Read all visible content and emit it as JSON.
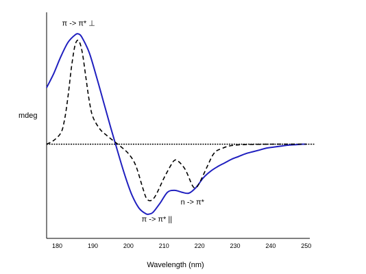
{
  "chart_data": {
    "type": "line",
    "xlabel": "Wavelength (nm)",
    "ylabel": "mdeg",
    "x_ticks": [
      180,
      190,
      200,
      210,
      220,
      230,
      240,
      250
    ],
    "xlim": [
      177,
      251
    ],
    "ylim": [
      -10,
      14
    ],
    "grid": false,
    "legend": "none",
    "zero_line": true,
    "series": [
      {
        "style": "solid",
        "color": "#1f1fbf",
        "x": [
          177,
          179,
          181,
          183,
          185,
          186,
          187,
          189,
          191,
          193,
          195,
          197,
          199,
          201,
          203,
          205,
          206,
          207,
          209,
          211,
          213,
          215,
          217,
          219,
          221,
          223,
          225,
          227,
          229,
          231,
          233,
          235,
          237,
          239,
          241,
          243,
          245,
          247,
          249,
          250
        ],
        "y": [
          6.0,
          7.5,
          9.3,
          10.8,
          11.6,
          11.7,
          11.3,
          9.7,
          7.2,
          4.5,
          1.8,
          -0.8,
          -3.3,
          -5.4,
          -6.8,
          -7.4,
          -7.4,
          -7.2,
          -6.2,
          -5.1,
          -4.9,
          -5.1,
          -5.2,
          -4.6,
          -3.6,
          -2.9,
          -2.4,
          -2.0,
          -1.6,
          -1.3,
          -1.0,
          -0.8,
          -0.6,
          -0.4,
          -0.3,
          -0.2,
          -0.1,
          -0.05,
          0.0,
          0.0
        ]
      },
      {
        "style": "dashed",
        "color": "#000000",
        "x": [
          177,
          179,
          181,
          182,
          183,
          184,
          185,
          186,
          187,
          188,
          189,
          190,
          192,
          194,
          196,
          198,
          200,
          202,
          204,
          205,
          206,
          207,
          208,
          210,
          212,
          213,
          214,
          216,
          218,
          219,
          220,
          222,
          224,
          226,
          230,
          240,
          250
        ],
        "y": [
          0.0,
          0.4,
          1.2,
          2.5,
          5.0,
          8.2,
          10.5,
          11.0,
          9.8,
          7.2,
          4.6,
          2.9,
          1.6,
          0.9,
          0.3,
          -0.3,
          -1.0,
          -2.2,
          -4.6,
          -5.7,
          -6.0,
          -5.8,
          -5.2,
          -3.6,
          -2.2,
          -1.7,
          -1.8,
          -2.7,
          -4.4,
          -4.6,
          -4.1,
          -2.5,
          -1.0,
          -0.5,
          -0.1,
          0.0,
          0.0
        ]
      }
    ],
    "annotations": [
      {
        "text": "π -> π* ⊥",
        "x": 186,
        "y": 12.6
      },
      {
        "text": "n -> π*",
        "x": 218,
        "y": -6.4
      },
      {
        "text": "π -> π* ||",
        "x": 208,
        "y": -8.2
      }
    ]
  }
}
